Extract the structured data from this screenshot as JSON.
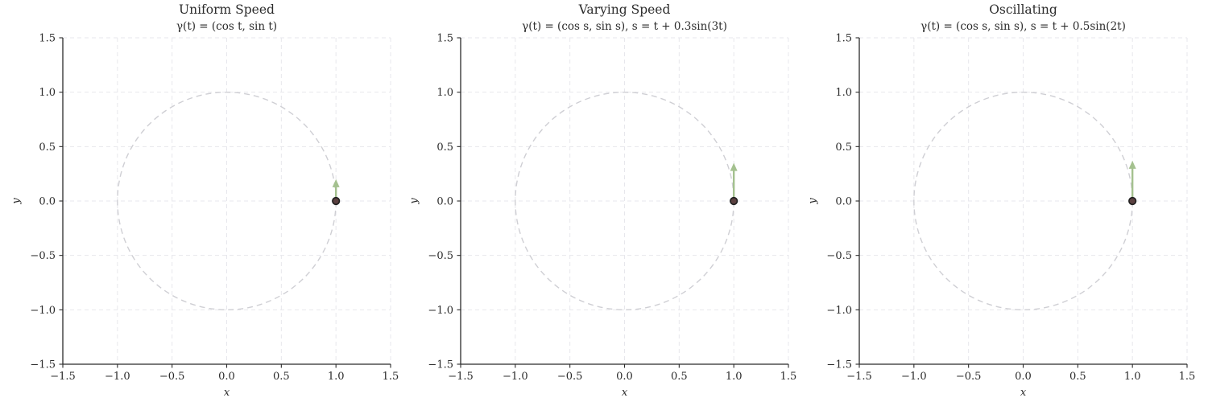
{
  "figure": {
    "background": "#ffffff",
    "panel_count": 3
  },
  "style": {
    "grid_color": "#e7e7ec",
    "curve_color": "#cfcfd4",
    "spine_color": "#2b2b2b",
    "text_color": "#2b2b2b",
    "arrow_color": "#a4c18f",
    "point_fill": "#5a4040",
    "point_edge": "#1f1f1f"
  },
  "chart_data": [
    {
      "type": "line",
      "title": "Uniform Speed",
      "subtitle": "γ(t) = (cos t, sin t)",
      "xlabel": "x",
      "ylabel": "y",
      "xlim": [
        -1.5,
        1.5
      ],
      "ylim": [
        -1.5,
        1.5
      ],
      "xticks": [
        -1.5,
        -1.0,
        -0.5,
        0.0,
        0.5,
        1.0,
        1.5
      ],
      "yticks": [
        -1.5,
        -1.0,
        -0.5,
        0.0,
        0.5,
        1.0,
        1.5
      ],
      "grid": true,
      "grid_style": "dashed",
      "legend": false,
      "curve": {
        "shape": "circle",
        "center": [
          0,
          0
        ],
        "radius": 1.0,
        "style": "dashed"
      },
      "particle": {
        "x": 1.0,
        "y": 0.0
      },
      "velocity_arrow": {
        "from": [
          1.0,
          0.0
        ],
        "to": [
          1.0,
          0.2
        ]
      }
    },
    {
      "type": "line",
      "title": "Varying Speed",
      "subtitle": "γ(t) = (cos s, sin s),  s = t + 0.3sin(3t)",
      "xlabel": "x",
      "ylabel": "y",
      "xlim": [
        -1.5,
        1.5
      ],
      "ylim": [
        -1.5,
        1.5
      ],
      "xticks": [
        -1.5,
        -1.0,
        -0.5,
        0.0,
        0.5,
        1.0,
        1.5
      ],
      "yticks": [
        -1.5,
        -1.0,
        -0.5,
        0.0,
        0.5,
        1.0,
        1.5
      ],
      "grid": true,
      "grid_style": "dashed",
      "legend": false,
      "curve": {
        "shape": "circle",
        "center": [
          0,
          0
        ],
        "radius": 1.0,
        "style": "dashed"
      },
      "particle": {
        "x": 1.0,
        "y": 0.0
      },
      "velocity_arrow": {
        "from": [
          1.0,
          0.0
        ],
        "to": [
          1.0,
          0.35
        ]
      }
    },
    {
      "type": "line",
      "title": "Oscillating",
      "subtitle": "γ(t) = (cos s, sin s),  s = t + 0.5sin(2t)",
      "xlabel": "x",
      "ylabel": "y",
      "xlim": [
        -1.5,
        1.5
      ],
      "ylim": [
        -1.5,
        1.5
      ],
      "xticks": [
        -1.5,
        -1.0,
        -0.5,
        0.0,
        0.5,
        1.0,
        1.5
      ],
      "yticks": [
        -1.5,
        -1.0,
        -0.5,
        0.0,
        0.5,
        1.0,
        1.5
      ],
      "grid": true,
      "grid_style": "dashed",
      "legend": false,
      "curve": {
        "shape": "circle",
        "center": [
          0,
          0
        ],
        "radius": 1.0,
        "style": "dashed"
      },
      "particle": {
        "x": 1.0,
        "y": 0.0
      },
      "velocity_arrow": {
        "from": [
          1.0,
          0.0
        ],
        "to": [
          1.0,
          0.37
        ]
      }
    }
  ]
}
